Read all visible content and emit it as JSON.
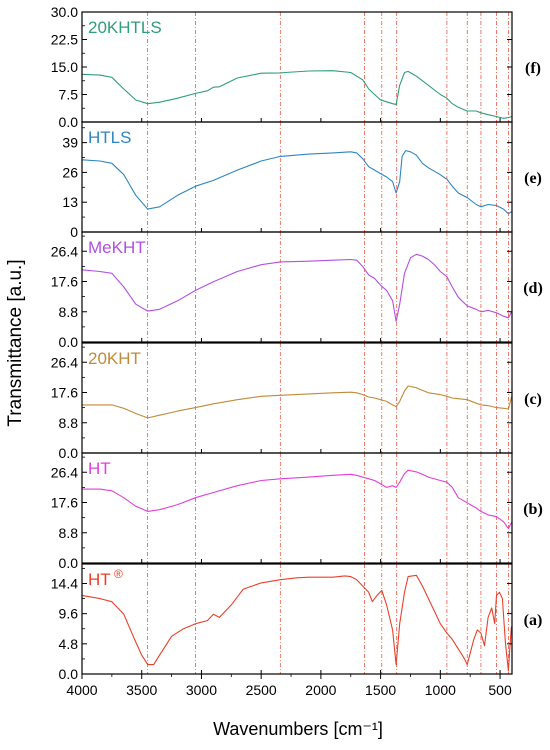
{
  "chart_data": {
    "type": "line",
    "xlabel": "Wavenumbers [cm⁻¹]",
    "ylabel": "Transmittance [a.u.]",
    "xlim": [
      4000,
      400
    ],
    "x_reversed": true,
    "x_ticks": [
      4000,
      3500,
      3000,
      2500,
      2000,
      1500,
      1000,
      500
    ],
    "x_tick_labels": [
      "4000",
      "3500",
      "3000",
      "2500",
      "2000",
      "1500",
      "1000",
      "500"
    ],
    "reference_lines_x": [
      3450,
      3050,
      2340,
      1635,
      1490,
      1365,
      945,
      775,
      660,
      530,
      430
    ],
    "reference_line_color": "#e8412b",
    "panels": [
      {
        "id": "(f)",
        "name": "20KHTLS",
        "color": "#2f9e7a",
        "ylim": [
          0,
          30
        ],
        "y_ticks": [
          "0.0",
          "7.5",
          "15.0",
          "22.5",
          "30.0"
        ],
        "points": [
          [
            4000,
            13
          ],
          [
            3850,
            12.8
          ],
          [
            3750,
            12.2
          ],
          [
            3650,
            9
          ],
          [
            3550,
            6
          ],
          [
            3450,
            5
          ],
          [
            3350,
            5.4
          ],
          [
            3200,
            6.5
          ],
          [
            3050,
            7.8
          ],
          [
            2950,
            8.5
          ],
          [
            2900,
            9.5
          ],
          [
            2850,
            9.6
          ],
          [
            2700,
            12
          ],
          [
            2500,
            13.3
          ],
          [
            2340,
            13.4
          ],
          [
            2300,
            13.5
          ],
          [
            2100,
            13.9
          ],
          [
            1900,
            14
          ],
          [
            1750,
            13.5
          ],
          [
            1650,
            11.5
          ],
          [
            1600,
            9
          ],
          [
            1550,
            7.5
          ],
          [
            1500,
            6
          ],
          [
            1450,
            5.5
          ],
          [
            1400,
            5
          ],
          [
            1370,
            4.8
          ],
          [
            1340,
            10
          ],
          [
            1300,
            13.5
          ],
          [
            1270,
            13.8
          ],
          [
            1200,
            12.5
          ],
          [
            1100,
            10
          ],
          [
            1000,
            7.5
          ],
          [
            945,
            6.5
          ],
          [
            900,
            5
          ],
          [
            850,
            4
          ],
          [
            775,
            3
          ],
          [
            700,
            3
          ],
          [
            660,
            2.5
          ],
          [
            600,
            2
          ],
          [
            530,
            1.5
          ],
          [
            470,
            1
          ],
          [
            430,
            1.2
          ],
          [
            400,
            1.5
          ]
        ]
      },
      {
        "id": "(e)",
        "name": "HTLS",
        "color": "#2e86c1",
        "ylim": [
          0,
          48
        ],
        "y_ticks": [
          "0",
          "13",
          "26",
          "39"
        ],
        "points": [
          [
            4000,
            31.5
          ],
          [
            3850,
            31
          ],
          [
            3750,
            30
          ],
          [
            3650,
            25
          ],
          [
            3550,
            16
          ],
          [
            3450,
            10
          ],
          [
            3350,
            11
          ],
          [
            3200,
            16
          ],
          [
            3050,
            20
          ],
          [
            2900,
            22.5
          ],
          [
            2700,
            27
          ],
          [
            2500,
            31
          ],
          [
            2340,
            33
          ],
          [
            2100,
            34
          ],
          [
            1900,
            34.5
          ],
          [
            1750,
            35
          ],
          [
            1700,
            34.5
          ],
          [
            1650,
            32
          ],
          [
            1600,
            28.5
          ],
          [
            1550,
            27
          ],
          [
            1500,
            25.5
          ],
          [
            1450,
            24
          ],
          [
            1400,
            22
          ],
          [
            1370,
            17
          ],
          [
            1340,
            22
          ],
          [
            1320,
            33
          ],
          [
            1290,
            35.5
          ],
          [
            1250,
            35
          ],
          [
            1200,
            33.5
          ],
          [
            1150,
            30
          ],
          [
            1100,
            28
          ],
          [
            1000,
            25
          ],
          [
            945,
            23
          ],
          [
            900,
            20
          ],
          [
            850,
            17
          ],
          [
            775,
            15
          ],
          [
            700,
            12
          ],
          [
            660,
            11
          ],
          [
            600,
            12
          ],
          [
            530,
            11.5
          ],
          [
            470,
            10
          ],
          [
            430,
            8
          ],
          [
            400,
            9
          ]
        ]
      },
      {
        "id": "(d)",
        "name": "MeKHT",
        "color": "#b44fe0",
        "ylim": [
          0,
          32
        ],
        "y_ticks": [
          "0.0",
          "8.8",
          "17.6",
          "26.4"
        ],
        "points": [
          [
            4000,
            21
          ],
          [
            3850,
            20.5
          ],
          [
            3750,
            20
          ],
          [
            3650,
            16
          ],
          [
            3550,
            11
          ],
          [
            3450,
            9
          ],
          [
            3350,
            9.5
          ],
          [
            3200,
            12
          ],
          [
            3050,
            15
          ],
          [
            2900,
            17.5
          ],
          [
            2700,
            20.5
          ],
          [
            2500,
            22.5
          ],
          [
            2340,
            23.3
          ],
          [
            2100,
            23.5
          ],
          [
            1900,
            23.8
          ],
          [
            1750,
            24
          ],
          [
            1700,
            23.8
          ],
          [
            1650,
            22
          ],
          [
            1600,
            19.5
          ],
          [
            1550,
            18.5
          ],
          [
            1500,
            16.5
          ],
          [
            1450,
            15
          ],
          [
            1400,
            12
          ],
          [
            1370,
            6
          ],
          [
            1340,
            11
          ],
          [
            1300,
            20
          ],
          [
            1250,
            24.5
          ],
          [
            1200,
            25.5
          ],
          [
            1150,
            25
          ],
          [
            1100,
            24
          ],
          [
            1050,
            22.5
          ],
          [
            1000,
            20.5
          ],
          [
            945,
            19
          ],
          [
            900,
            16
          ],
          [
            850,
            13
          ],
          [
            775,
            10.5
          ],
          [
            700,
            9.5
          ],
          [
            660,
            8.8
          ],
          [
            600,
            9.2
          ],
          [
            530,
            8.5
          ],
          [
            470,
            7.5
          ],
          [
            430,
            7
          ],
          [
            400,
            9
          ]
        ]
      },
      {
        "id": "(c)",
        "name": "20KHT",
        "color": "#c18a3a",
        "ylim": [
          0,
          32
        ],
        "y_ticks": [
          "0.0",
          "8.8",
          "17.6",
          "26.4"
        ],
        "points": [
          [
            4000,
            14
          ],
          [
            3850,
            14
          ],
          [
            3750,
            14
          ],
          [
            3650,
            13
          ],
          [
            3550,
            11.5
          ],
          [
            3450,
            10.2
          ],
          [
            3350,
            11
          ],
          [
            3200,
            12.2
          ],
          [
            3050,
            13.2
          ],
          [
            2900,
            14.3
          ],
          [
            2700,
            15.5
          ],
          [
            2500,
            16.5
          ],
          [
            2340,
            16.8
          ],
          [
            2100,
            17.2
          ],
          [
            1900,
            17.5
          ],
          [
            1750,
            17.7
          ],
          [
            1700,
            17.5
          ],
          [
            1650,
            17
          ],
          [
            1600,
            16.3
          ],
          [
            1550,
            16
          ],
          [
            1500,
            15.5
          ],
          [
            1450,
            15
          ],
          [
            1400,
            14
          ],
          [
            1370,
            13.5
          ],
          [
            1340,
            15
          ],
          [
            1300,
            18
          ],
          [
            1270,
            19.5
          ],
          [
            1200,
            19
          ],
          [
            1150,
            18.2
          ],
          [
            1100,
            17.5
          ],
          [
            1000,
            17
          ],
          [
            945,
            16.5
          ],
          [
            900,
            16
          ],
          [
            850,
            15.8
          ],
          [
            775,
            15.5
          ],
          [
            700,
            14.5
          ],
          [
            660,
            14
          ],
          [
            600,
            13.8
          ],
          [
            530,
            13.2
          ],
          [
            470,
            13
          ],
          [
            430,
            12.8
          ],
          [
            400,
            16.8
          ]
        ]
      },
      {
        "id": "(b)",
        "name": "HT",
        "color": "#e03fd8",
        "ylim": [
          0,
          32
        ],
        "y_ticks": [
          "0.0",
          "8.8",
          "17.6",
          "26.4"
        ],
        "points": [
          [
            4000,
            21.5
          ],
          [
            3850,
            21.5
          ],
          [
            3750,
            21
          ],
          [
            3650,
            19
          ],
          [
            3550,
            16.5
          ],
          [
            3450,
            15
          ],
          [
            3350,
            15.5
          ],
          [
            3200,
            17
          ],
          [
            3050,
            19
          ],
          [
            2900,
            20.5
          ],
          [
            2700,
            22.5
          ],
          [
            2500,
            24
          ],
          [
            2340,
            24.5
          ],
          [
            2100,
            25
          ],
          [
            1900,
            25.5
          ],
          [
            1750,
            25.8
          ],
          [
            1700,
            25.5
          ],
          [
            1650,
            25
          ],
          [
            1600,
            24.5
          ],
          [
            1550,
            24
          ],
          [
            1500,
            23
          ],
          [
            1450,
            22
          ],
          [
            1400,
            22.5
          ],
          [
            1370,
            22
          ],
          [
            1340,
            23.5
          ],
          [
            1300,
            26
          ],
          [
            1270,
            27
          ],
          [
            1200,
            26.5
          ],
          [
            1150,
            25.8
          ],
          [
            1100,
            25
          ],
          [
            1000,
            24
          ],
          [
            945,
            23.5
          ],
          [
            900,
            22
          ],
          [
            850,
            19
          ],
          [
            775,
            17.5
          ],
          [
            700,
            16
          ],
          [
            660,
            15
          ],
          [
            600,
            14
          ],
          [
            530,
            13.5
          ],
          [
            470,
            12
          ],
          [
            430,
            10
          ],
          [
            400,
            12
          ]
        ]
      },
      {
        "id": "(a)",
        "name": "HT",
        "name_sup": "®",
        "color": "#e8412b",
        "ylim": [
          0,
          17.5
        ],
        "y_ticks": [
          "0.0",
          "4.8",
          "9.6",
          "14.4"
        ],
        "points": [
          [
            4000,
            12.5
          ],
          [
            3850,
            12
          ],
          [
            3750,
            11.5
          ],
          [
            3650,
            9.5
          ],
          [
            3560,
            5.5
          ],
          [
            3500,
            3
          ],
          [
            3450,
            1.5
          ],
          [
            3400,
            1.5
          ],
          [
            3350,
            3
          ],
          [
            3250,
            6
          ],
          [
            3150,
            7.2
          ],
          [
            3050,
            8
          ],
          [
            2950,
            8.5
          ],
          [
            2900,
            9.5
          ],
          [
            2850,
            9
          ],
          [
            2750,
            11
          ],
          [
            2650,
            13.5
          ],
          [
            2500,
            14.5
          ],
          [
            2340,
            15
          ],
          [
            2200,
            15.3
          ],
          [
            2100,
            15.4
          ],
          [
            1900,
            15.4
          ],
          [
            1800,
            15.6
          ],
          [
            1750,
            15.5
          ],
          [
            1700,
            15
          ],
          [
            1650,
            14
          ],
          [
            1600,
            13
          ],
          [
            1570,
            11.5
          ],
          [
            1530,
            12.5
          ],
          [
            1490,
            13.3
          ],
          [
            1450,
            11
          ],
          [
            1400,
            7
          ],
          [
            1370,
            1.5
          ],
          [
            1340,
            8
          ],
          [
            1300,
            13
          ],
          [
            1270,
            15.5
          ],
          [
            1200,
            15.7
          ],
          [
            1150,
            14
          ],
          [
            1100,
            12
          ],
          [
            1050,
            10
          ],
          [
            1000,
            8
          ],
          [
            945,
            6.5
          ],
          [
            900,
            5.5
          ],
          [
            850,
            4
          ],
          [
            800,
            2.5
          ],
          [
            775,
            1.5
          ],
          [
            720,
            5.5
          ],
          [
            690,
            7
          ],
          [
            660,
            6.5
          ],
          [
            630,
            4.5
          ],
          [
            600,
            9
          ],
          [
            570,
            10.5
          ],
          [
            545,
            8
          ],
          [
            530,
            12.5
          ],
          [
            505,
            13
          ],
          [
            480,
            12
          ],
          [
            455,
            5
          ],
          [
            430,
            0.5
          ],
          [
            415,
            5
          ],
          [
            405,
            7.5
          ],
          [
            400,
            6.5
          ]
        ]
      }
    ]
  }
}
